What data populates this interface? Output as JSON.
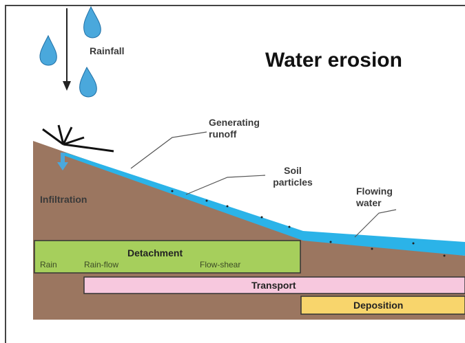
{
  "header": {
    "title": "Water erosion"
  },
  "labels": {
    "rainfall": "Rainfall",
    "runoff": "Generating runoff",
    "soil_particles": "Soil particles",
    "flowing_water": "Flowing water",
    "infiltration": "Infiltration"
  },
  "stages": {
    "detachment": {
      "label": "Detachment",
      "parts": [
        "Rain",
        "Rain-flow",
        "Flow-shear"
      ]
    },
    "transport": "Transport",
    "deposition": "Deposition"
  }
}
